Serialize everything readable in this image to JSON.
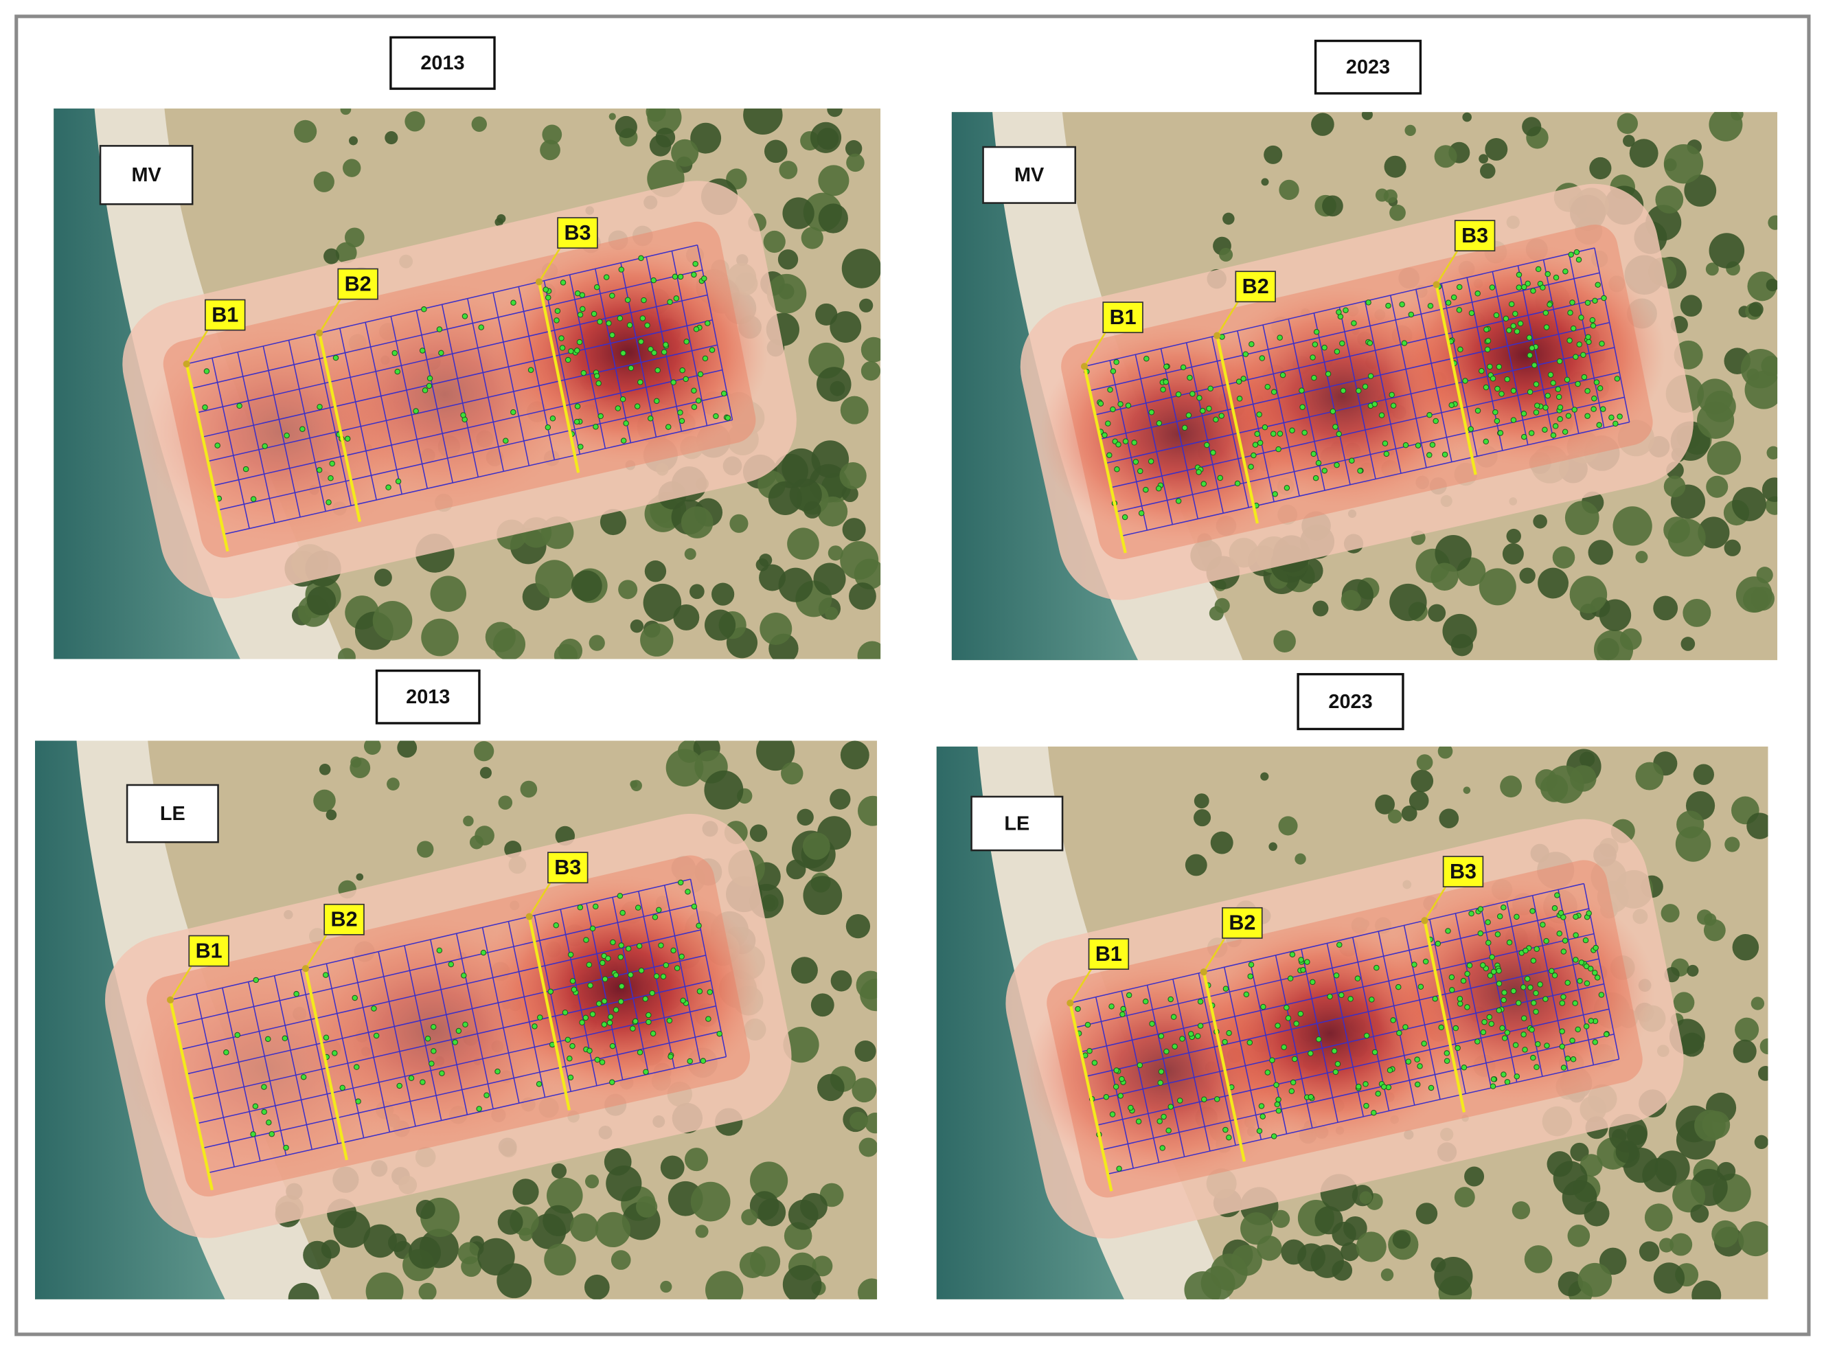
{
  "panels": [
    {
      "year": "2013",
      "site": "MV",
      "bands": [
        "B1",
        "B2",
        "B3"
      ]
    },
    {
      "year": "2023",
      "site": "MV",
      "bands": [
        "B1",
        "B2",
        "B3"
      ]
    },
    {
      "year": "2013",
      "site": "LE",
      "bands": [
        "B1",
        "B2",
        "B3"
      ]
    },
    {
      "year": "2023",
      "site": "LE",
      "bands": [
        "B1",
        "B2",
        "B3"
      ]
    }
  ]
}
